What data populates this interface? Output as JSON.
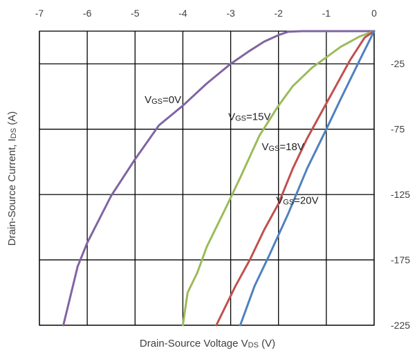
{
  "chart_data": {
    "type": "line",
    "title": "",
    "xlabel": {
      "main": "Drain-Source Voltage V",
      "sub": "DS",
      "unit": " (V)"
    },
    "ylabel": {
      "main": "Drain-Source Current, I",
      "sub": "DS",
      "unit": " (A)"
    },
    "xlim": [
      -7,
      0
    ],
    "ylim": [
      -225,
      0
    ],
    "x_ticks": [
      -7,
      -6,
      -5,
      -4,
      -3,
      -2,
      -1,
      0
    ],
    "y_ticks": [
      -25,
      -75,
      -125,
      -175,
      -225
    ],
    "grid": true,
    "legend": "none",
    "series": [
      {
        "name": "VGS=0V",
        "label": {
          "v": "V",
          "sub": "GS",
          "val": "=0V"
        },
        "color": "#8064a2",
        "points": [
          [
            0,
            0
          ],
          [
            -0.5,
            0
          ],
          [
            -1,
            0
          ],
          [
            -1.5,
            0
          ],
          [
            -1.8,
            -0.5
          ],
          [
            -2,
            -3
          ],
          [
            -2.3,
            -8
          ],
          [
            -2.6,
            -15
          ],
          [
            -3,
            -25
          ],
          [
            -3.5,
            -40
          ],
          [
            -4,
            -57
          ],
          [
            -4.5,
            -72
          ],
          [
            -5,
            -98
          ],
          [
            -5.5,
            -126
          ],
          [
            -6,
            -162
          ],
          [
            -6.2,
            -180
          ],
          [
            -6.5,
            -225
          ]
        ]
      },
      {
        "name": "VGS=15V",
        "label": {
          "v": "V",
          "sub": "GS",
          "val": "=15V"
        },
        "color": "#9bbb59",
        "points": [
          [
            0,
            0
          ],
          [
            -0.3,
            -4
          ],
          [
            -0.7,
            -12
          ],
          [
            -1,
            -20
          ],
          [
            -1.3,
            -28
          ],
          [
            -1.7,
            -42
          ],
          [
            -2,
            -57
          ],
          [
            -2.4,
            -80
          ],
          [
            -2.8,
            -112
          ],
          [
            -3.1,
            -135
          ],
          [
            -3.5,
            -165
          ],
          [
            -3.7,
            -185
          ],
          [
            -3.9,
            -200
          ],
          [
            -4,
            -225
          ]
        ]
      },
      {
        "name": "VGS=18V",
        "label": {
          "v": "V",
          "sub": "GS",
          "val": "=18V"
        },
        "color": "#c0504d",
        "points": [
          [
            0,
            0
          ],
          [
            -0.2,
            -5
          ],
          [
            -0.5,
            -22
          ],
          [
            -0.8,
            -42
          ],
          [
            -1.1,
            -62
          ],
          [
            -1.4,
            -82
          ],
          [
            -1.7,
            -105
          ],
          [
            -2,
            -132
          ],
          [
            -2.3,
            -152
          ],
          [
            -2.6,
            -175
          ],
          [
            -2.9,
            -195
          ],
          [
            -3.3,
            -225
          ]
        ]
      },
      {
        "name": "VGS=20V",
        "label": {
          "v": "V",
          "sub": "GS",
          "val": "=20V"
        },
        "color": "#4f81bd",
        "points": [
          [
            0,
            0
          ],
          [
            -0.3,
            -22
          ],
          [
            -0.7,
            -52
          ],
          [
            -1,
            -75
          ],
          [
            -1.4,
            -105
          ],
          [
            -1.8,
            -140
          ],
          [
            -2.2,
            -172
          ],
          [
            -2.5,
            -195
          ],
          [
            -2.8,
            -225
          ]
        ]
      }
    ]
  }
}
